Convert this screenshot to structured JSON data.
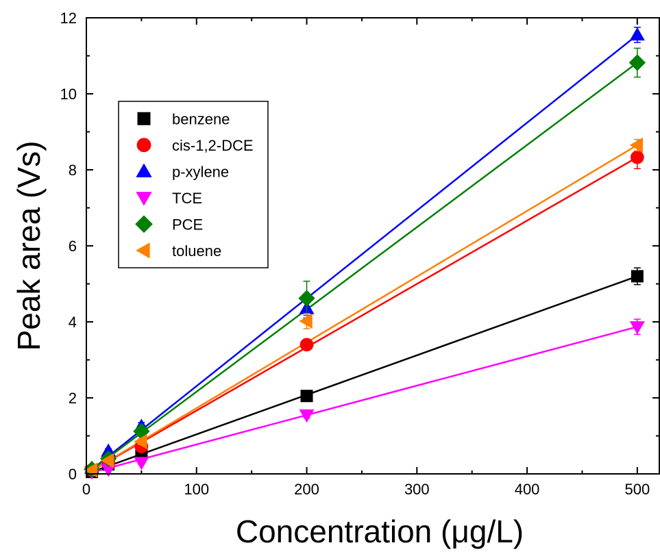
{
  "chart_data": {
    "type": "scatter",
    "title": "",
    "xlabel": "Concentration (μg/L)",
    "ylabel": "Peak area (Vs)",
    "xlim": [
      0,
      520
    ],
    "ylim": [
      0,
      12
    ],
    "x_ticks": [
      0,
      100,
      200,
      300,
      400,
      500
    ],
    "y_ticks": [
      0,
      2,
      4,
      6,
      8,
      10,
      12
    ],
    "x_tick_labels": [
      "0",
      "100",
      "200",
      "300",
      "400",
      "500"
    ],
    "y_tick_labels": [
      "0",
      "2",
      "4",
      "6",
      "8",
      "10",
      "12"
    ],
    "grid": false,
    "legend_position": "upper-left",
    "x": [
      5,
      20,
      50,
      200,
      500
    ],
    "series": [
      {
        "name": "benzene",
        "color": "#000000",
        "marker": "square",
        "values": [
          0.05,
          0.25,
          0.55,
          2.05,
          5.2
        ],
        "errors": [
          0.02,
          0.05,
          0.06,
          0.1,
          0.22
        ],
        "fit": [
          0.0,
          5.2
        ]
      },
      {
        "name": "cis-1,2-DCE",
        "color": "#ff0000",
        "marker": "circle",
        "values": [
          0.1,
          0.35,
          0.72,
          3.4,
          8.33
        ],
        "errors": [
          0.02,
          0.05,
          0.08,
          0.12,
          0.3
        ],
        "fit": [
          0.0,
          8.33
        ]
      },
      {
        "name": "p-xylene",
        "color": "#0000ff",
        "marker": "triangle-up",
        "values": [
          0.15,
          0.6,
          1.25,
          4.35,
          11.55
        ],
        "errors": [
          0.03,
          0.06,
          0.1,
          0.25,
          0.2
        ],
        "fit": [
          0.0,
          11.55
        ]
      },
      {
        "name": "TCE",
        "color": "#ff00ff",
        "marker": "triangle-down",
        "values": [
          0.05,
          0.12,
          0.3,
          1.55,
          3.87
        ],
        "errors": [
          0.02,
          0.03,
          0.05,
          0.08,
          0.2
        ],
        "fit": [
          0.0,
          3.87
        ]
      },
      {
        "name": "PCE",
        "color": "#008000",
        "marker": "diamond",
        "values": [
          0.12,
          0.4,
          1.12,
          4.62,
          10.82
        ],
        "errors": [
          0.03,
          0.05,
          0.1,
          0.45,
          0.38
        ],
        "fit": [
          0.0,
          10.82
        ]
      },
      {
        "name": "toluene",
        "color": "#ff8000",
        "marker": "triangle-left",
        "values": [
          0.1,
          0.35,
          0.85,
          4.02,
          8.65
        ],
        "errors": [
          0.02,
          0.05,
          0.08,
          0.2,
          0.15
        ],
        "fit": [
          0.0,
          8.65
        ]
      }
    ]
  }
}
